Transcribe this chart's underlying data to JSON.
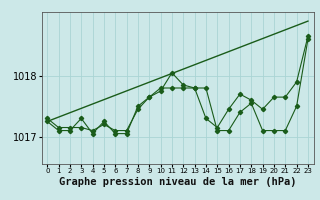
{
  "title": "Graphe pression niveau de la mer (hPa)",
  "bg_color": "#cce8e8",
  "grid_color": "#aad4d4",
  "line_color": "#1a5c1a",
  "marker_color": "#1a5c1a",
  "xlim": [
    -0.5,
    23.5
  ],
  "ylim": [
    1016.55,
    1019.05
  ],
  "yticks": [
    1017,
    1018
  ],
  "xticks": [
    0,
    1,
    2,
    3,
    4,
    5,
    6,
    7,
    8,
    9,
    10,
    11,
    12,
    13,
    14,
    15,
    16,
    17,
    18,
    19,
    20,
    21,
    22,
    23
  ],
  "series1_x": [
    0,
    1,
    2,
    3,
    4,
    5,
    6,
    7,
    8,
    9,
    10,
    11,
    12,
    13,
    14,
    15,
    16,
    17,
    18,
    19,
    20,
    21,
    22,
    23
  ],
  "series1_y": [
    1017.3,
    1017.15,
    1017.15,
    1017.15,
    1017.1,
    1017.2,
    1017.1,
    1017.1,
    1017.45,
    1017.65,
    1017.75,
    1018.05,
    1017.85,
    1017.8,
    1017.3,
    1017.15,
    1017.45,
    1017.7,
    1017.6,
    1017.45,
    1017.65,
    1017.65,
    1017.9,
    1018.65
  ],
  "series2_x": [
    0,
    1,
    2,
    3,
    4,
    5,
    6,
    7,
    8,
    9,
    10,
    11,
    12,
    13,
    14,
    15,
    16,
    17,
    18,
    19,
    20,
    21,
    22,
    23
  ],
  "series2_y": [
    1017.25,
    1017.1,
    1017.1,
    1017.3,
    1017.05,
    1017.25,
    1017.05,
    1017.05,
    1017.5,
    1017.65,
    1017.8,
    1017.8,
    1017.8,
    1017.8,
    1017.8,
    1017.1,
    1017.1,
    1017.4,
    1017.55,
    1017.1,
    1017.1,
    1017.1,
    1017.5,
    1018.6
  ],
  "series3_x": [
    0,
    23
  ],
  "series3_y": [
    1017.25,
    1018.9
  ],
  "xlabel_fontsize": 7.5,
  "tick_fontsize": 7,
  "ytick_fontsize": 7
}
